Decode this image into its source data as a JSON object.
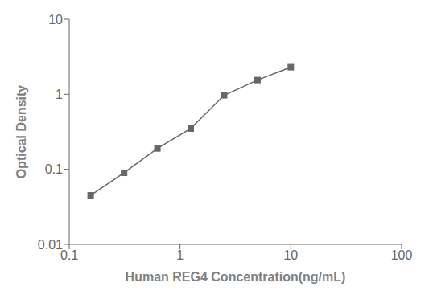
{
  "chart_data": {
    "type": "line",
    "xlabel": "Human REG4 Concentration(ng/mL)",
    "ylabel": "Optical Density",
    "x": [
      0.156,
      0.313,
      0.625,
      1.25,
      2.5,
      5.0,
      10.0
    ],
    "values": [
      0.045,
      0.09,
      0.19,
      0.35,
      0.97,
      1.55,
      2.3
    ],
    "xlim": [
      0.1,
      100
    ],
    "ylim": [
      0.01,
      10
    ],
    "xticks": [
      0.1,
      1,
      10,
      100
    ],
    "yticks": [
      0.01,
      0.1,
      1,
      10
    ],
    "log": true,
    "grid": false,
    "color": "#666666",
    "marker": "square"
  }
}
